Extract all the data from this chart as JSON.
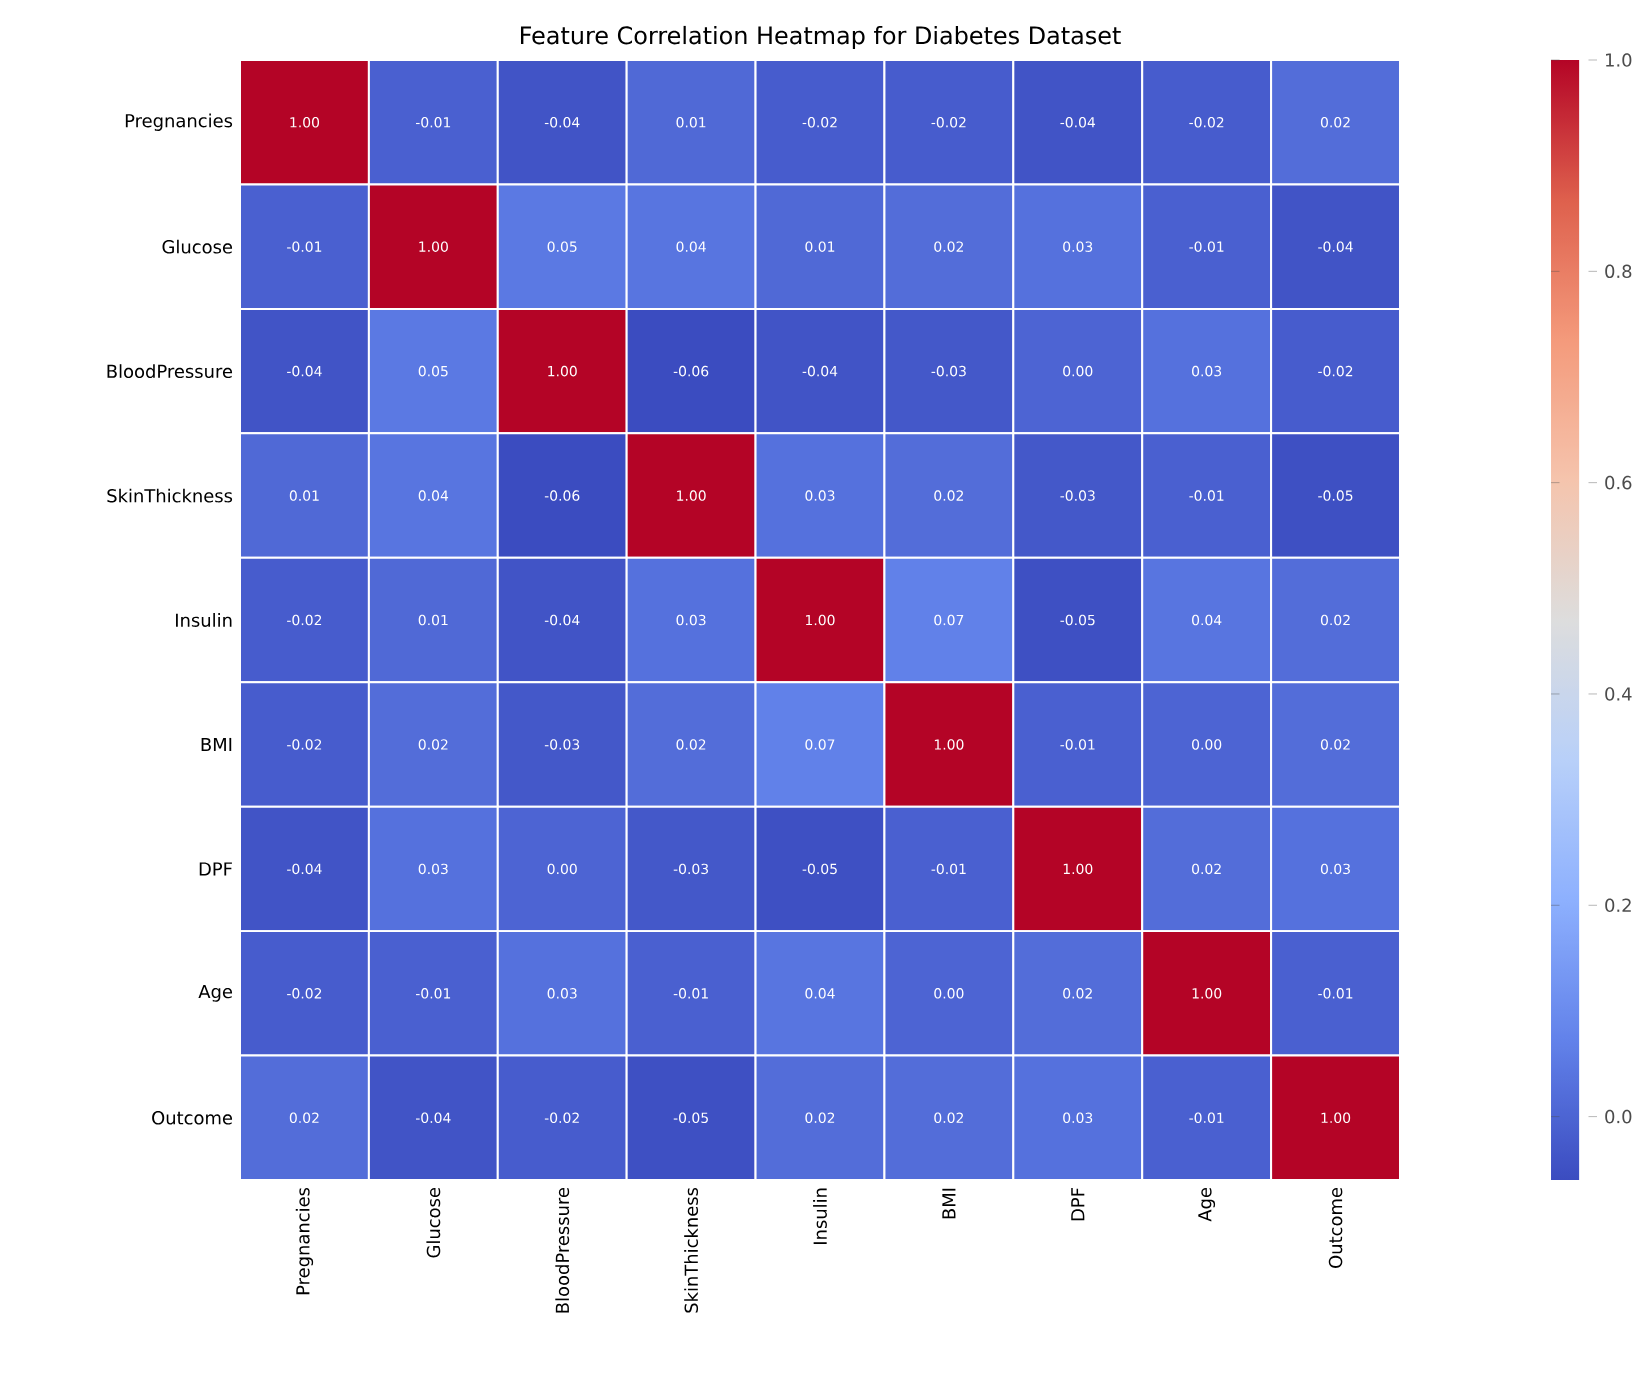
{
  "chart_data": {
    "type": "heatmap",
    "title": "Feature Correlation Heatmap for Diabetes Dataset",
    "categories": [
      "Pregnancies",
      "Glucose",
      "BloodPressure",
      "SkinThickness",
      "Insulin",
      "BMI",
      "DPF",
      "Age",
      "Outcome"
    ],
    "y_categories": [
      "Pregnancies",
      "Glucose",
      "BloodPressure",
      "SkinThickness",
      "Insulin",
      "BMI",
      "DPF",
      "Age",
      "Outcome"
    ],
    "cells": [
      [
        1.0,
        -0.01,
        -0.04,
        0.01,
        -0.02,
        -0.02,
        -0.04,
        -0.02,
        0.02
      ],
      [
        -0.01,
        1.0,
        0.05,
        0.04,
        0.01,
        0.02,
        0.03,
        -0.01,
        -0.04
      ],
      [
        -0.04,
        0.05,
        1.0,
        -0.06,
        -0.04,
        -0.03,
        0.0,
        0.03,
        -0.02
      ],
      [
        0.01,
        0.04,
        -0.06,
        1.0,
        0.03,
        0.02,
        -0.03,
        -0.01,
        -0.05
      ],
      [
        -0.02,
        0.01,
        -0.04,
        0.03,
        1.0,
        0.07,
        -0.05,
        0.04,
        0.02
      ],
      [
        -0.02,
        0.02,
        -0.03,
        0.02,
        0.07,
        1.0,
        -0.01,
        0.0,
        0.02
      ],
      [
        -0.04,
        0.03,
        0.0,
        -0.03,
        -0.05,
        -0.01,
        1.0,
        0.02,
        0.03
      ],
      [
        -0.02,
        -0.01,
        0.03,
        -0.01,
        0.04,
        0.0,
        0.02,
        1.0,
        -0.01
      ],
      [
        0.02,
        -0.04,
        -0.02,
        -0.05,
        0.02,
        0.02,
        0.03,
        -0.01,
        1.0
      ]
    ],
    "cell_labels": [
      [
        "1.00",
        "-0.01",
        "-0.04",
        "0.01",
        "-0.02",
        "-0.02",
        "-0.04",
        "-0.02",
        "0.02"
      ],
      [
        "-0.01",
        "1.00",
        "0.05",
        "0.04",
        "0.01",
        "0.02",
        "0.03",
        "-0.01",
        "-0.04"
      ],
      [
        "-0.04",
        "0.05",
        "1.00",
        "-0.06",
        "-0.04",
        "-0.03",
        "0.00",
        "0.03",
        "-0.02"
      ],
      [
        "0.01",
        "0.04",
        "-0.06",
        "1.00",
        "0.03",
        "0.02",
        "-0.03",
        "-0.01",
        "-0.05"
      ],
      [
        "-0.02",
        "0.01",
        "-0.04",
        "0.03",
        "1.00",
        "0.07",
        "-0.05",
        "0.04",
        "0.02"
      ],
      [
        "-0.02",
        "0.02",
        "-0.03",
        "0.02",
        "0.07",
        "1.00",
        "-0.01",
        "0.00",
        "0.02"
      ],
      [
        "-0.04",
        "0.03",
        "0.00",
        "-0.03",
        "-0.05",
        "-0.01",
        "1.00",
        "0.02",
        "0.03"
      ],
      [
        "-0.02",
        "-0.01",
        "0.03",
        "-0.01",
        "0.04",
        "0.00",
        "0.02",
        "1.00",
        "-0.01"
      ],
      [
        "0.02",
        "-0.04",
        "-0.02",
        "-0.05",
        "0.02",
        "0.02",
        "0.03",
        "-0.01",
        "1.00"
      ]
    ],
    "clim": [
      -0.06,
      1.0
    ],
    "cticks": [
      {
        "value": 0,
        "label": "0.0"
      },
      {
        "value": 0.2,
        "label": "0.2"
      },
      {
        "value": 0.4,
        "label": "0.4"
      },
      {
        "value": 0.6,
        "label": "0.6"
      },
      {
        "value": 0.8,
        "label": "0.8"
      },
      {
        "value": 1.0,
        "label": "1.0"
      }
    ]
  }
}
